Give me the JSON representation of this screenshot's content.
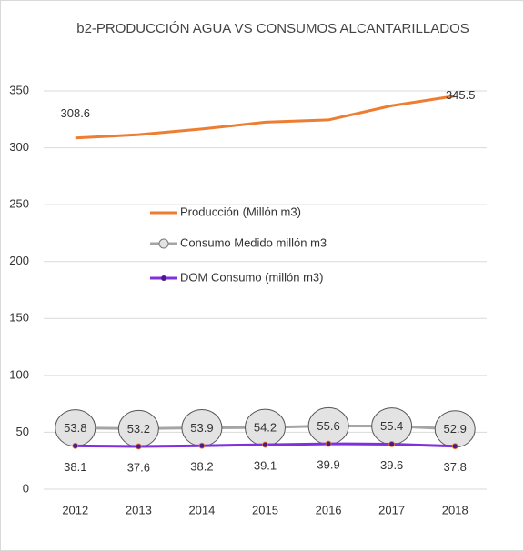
{
  "chart_data": {
    "type": "line",
    "title": "b2-PRODUCCIÓN AGUA VS CONSUMOS ALCANTARILLADOS",
    "categories": [
      "2012",
      "2013",
      "2014",
      "2015",
      "2016",
      "2017",
      "2018"
    ],
    "series": [
      {
        "name": "Producción (Millón m3)",
        "color": "#ed7d31",
        "values": [
          308.6,
          311.5,
          316.5,
          322.5,
          324.5,
          337,
          345.5
        ],
        "value_labels": [
          "308.6",
          null,
          null,
          null,
          null,
          null,
          "345.5"
        ]
      },
      {
        "name": "Consumo Medido millón m3",
        "color": "#a5a5a5",
        "values": [
          53.8,
          53.2,
          53.9,
          54.2,
          55.6,
          55.4,
          52.9
        ]
      },
      {
        "name": "DOM Consumo (millón m3)",
        "color": "#7f30e0",
        "values": [
          38.1,
          37.6,
          38.2,
          39.1,
          39.9,
          39.6,
          37.8
        ]
      }
    ],
    "ylim": [
      0,
      350
    ],
    "yticks": [
      0,
      50,
      100,
      150,
      200,
      250,
      300,
      350
    ],
    "grid": true
  }
}
